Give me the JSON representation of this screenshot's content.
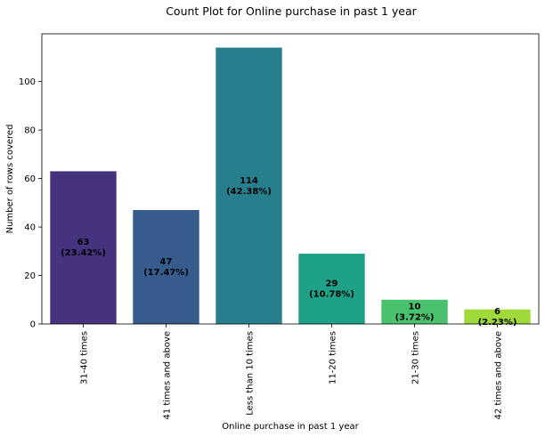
{
  "chart_data": {
    "type": "bar",
    "title": "Count Plot for Online purchase in past 1 year",
    "xlabel": "Online purchase in past 1 year",
    "ylabel": "Number of rows covered",
    "categories": [
      "31-40 times",
      "41 times and above",
      "Less than 10 times",
      "11-20 times",
      "21-30 times",
      "42 times and above"
    ],
    "values": [
      63,
      47,
      114,
      29,
      10,
      6
    ],
    "value_labels": [
      "63",
      "47",
      "114",
      "29",
      "10",
      "6"
    ],
    "percent_labels": [
      "(23.42%)",
      "(17.47%)",
      "(42.38%)",
      "(10.78%)",
      "(3.72%)",
      "(2.23%)"
    ],
    "colors": [
      "#46327e",
      "#365c8d",
      "#277f8e",
      "#1fa187",
      "#4ac16d",
      "#a0da39"
    ],
    "ylim": [
      0,
      119.7
    ],
    "yticks": [
      0,
      20,
      40,
      60,
      80,
      100
    ],
    "grid": false,
    "legend": "none"
  }
}
